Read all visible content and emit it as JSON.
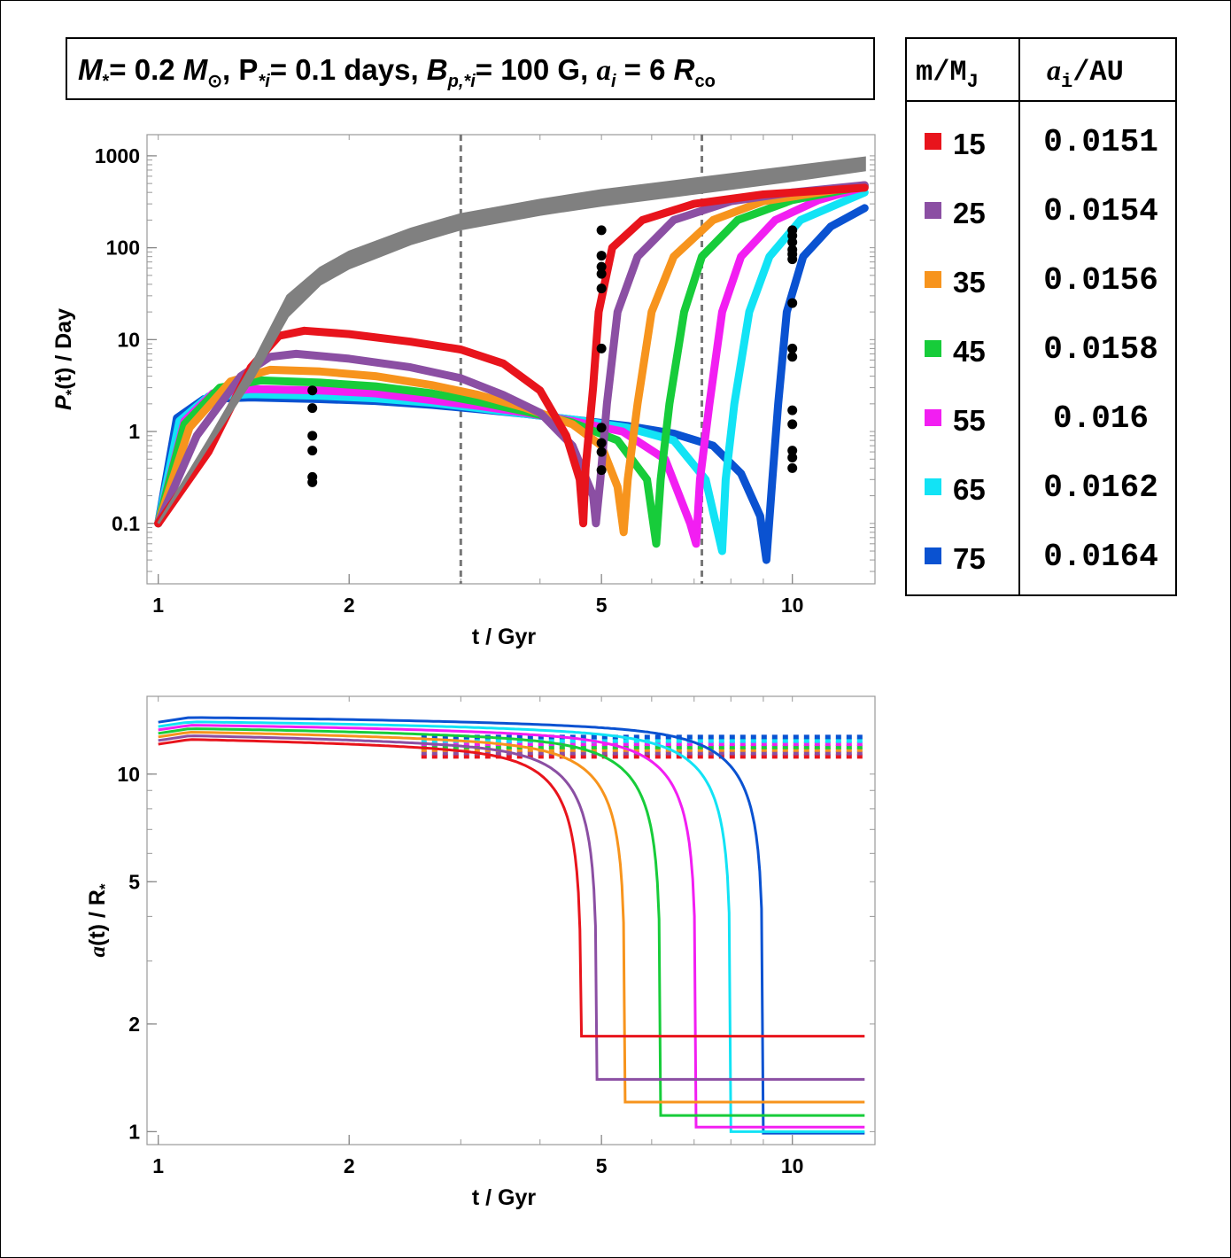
{
  "title": {
    "m_star": "M",
    "m_star_sub": "*",
    "m_star_val": "= 0.2 ",
    "m_sun": "M",
    "sun_sub": "⊙",
    "p_star": ", P",
    "p_star_sub": "*i",
    "p_star_val": "= 0.1 days, ",
    "b_p": "B",
    "b_p_sub": "p,*i",
    "b_p_val": "= 100 G,  ",
    "a_i": "a",
    "a_i_sub": "i",
    "a_i_val": " = 6 ",
    "r_co": "R",
    "r_co_sub": "co"
  },
  "legend": {
    "header_mass": "m/M",
    "header_mass_sub": "J",
    "header_ai": "a",
    "header_ai_sub": "i",
    "header_ai_unit": "/AU",
    "rows": [
      {
        "mass": "15",
        "ai": "0.0151",
        "color": "#e8141c"
      },
      {
        "mass": "25",
        "ai": "0.0154",
        "color": "#8b4fa3"
      },
      {
        "mass": "35",
        "ai": "0.0156",
        "color": "#f7941d"
      },
      {
        "mass": "45",
        "ai": "0.0158",
        "color": "#17cc3a"
      },
      {
        "mass": "55",
        "ai": "0.016",
        "color": "#f21ef2"
      },
      {
        "mass": "65",
        "ai": "0.0162",
        "color": "#12e3f5"
      },
      {
        "mass": "75",
        "ai": "0.0164",
        "color": "#0a52d1"
      }
    ]
  },
  "chart_data": [
    {
      "type": "line",
      "scale": "log-log",
      "xlabel": "t / Gyr",
      "ylabel": "P",
      "ylabel_sub": "*",
      "ylabel_rest": "(t) / Day",
      "xlim": [
        0.96,
        13.5
      ],
      "ylim": [
        0.022,
        1700
      ],
      "xticks": [
        {
          "v": 1,
          "label": "1"
        },
        {
          "v": 2,
          "label": "2"
        },
        {
          "v": 5,
          "label": "5"
        },
        {
          "v": 10,
          "label": "10"
        }
      ],
      "yticks": [
        {
          "v": 0.1,
          "label": "0.1"
        },
        {
          "v": 1,
          "label": "1"
        },
        {
          "v": 10,
          "label": "10"
        },
        {
          "v": 100,
          "label": "100"
        },
        {
          "v": 1000,
          "label": "1000"
        }
      ],
      "vlines": [
        3.0,
        7.2
      ],
      "gray_band": {
        "color": "#808080",
        "lower": [
          [
            1.0,
            0.1
          ],
          [
            1.2,
            0.7
          ],
          [
            1.4,
            3.5
          ],
          [
            1.6,
            18
          ],
          [
            1.8,
            40
          ],
          [
            2.0,
            60
          ],
          [
            2.5,
            110
          ],
          [
            3.0,
            160
          ],
          [
            4.0,
            230
          ],
          [
            5.0,
            290
          ],
          [
            7.0,
            390
          ],
          [
            10.0,
            540
          ],
          [
            13.0,
            700
          ]
        ],
        "upper": [
          [
            1.0,
            0.1
          ],
          [
            1.2,
            0.8
          ],
          [
            1.4,
            5
          ],
          [
            1.6,
            30
          ],
          [
            1.8,
            60
          ],
          [
            2.0,
            90
          ],
          [
            2.5,
            160
          ],
          [
            3.0,
            230
          ],
          [
            4.0,
            330
          ],
          [
            5.0,
            420
          ],
          [
            7.0,
            560
          ],
          [
            10.0,
            760
          ],
          [
            13.0,
            950
          ]
        ]
      },
      "series": [
        {
          "name": "15",
          "color": "#e8141c",
          "points": [
            [
              1.0,
              0.1
            ],
            [
              1.2,
              0.6
            ],
            [
              1.4,
              5
            ],
            [
              1.55,
              11
            ],
            [
              1.7,
              12.5
            ],
            [
              2.0,
              11.5
            ],
            [
              2.5,
              9.5
            ],
            [
              3.0,
              7.8
            ],
            [
              3.5,
              5.5
            ],
            [
              4.0,
              2.8
            ],
            [
              4.4,
              0.9
            ],
            [
              4.62,
              0.3
            ],
            [
              4.68,
              0.1
            ],
            [
              4.72,
              0.4
            ],
            [
              4.85,
              3
            ],
            [
              4.95,
              20
            ],
            [
              5.2,
              100
            ],
            [
              5.8,
              200
            ],
            [
              7.0,
              300
            ],
            [
              9.0,
              380
            ],
            [
              13.0,
              450
            ]
          ]
        },
        {
          "name": "25",
          "color": "#8b4fa3",
          "points": [
            [
              1.0,
              0.1
            ],
            [
              1.15,
              0.9
            ],
            [
              1.35,
              4
            ],
            [
              1.5,
              6.5
            ],
            [
              1.65,
              7
            ],
            [
              2.0,
              6.2
            ],
            [
              2.5,
              5
            ],
            [
              3.0,
              3.8
            ],
            [
              3.5,
              2.5
            ],
            [
              4.0,
              1.6
            ],
            [
              4.5,
              0.7
            ],
            [
              4.85,
              0.2
            ],
            [
              4.9,
              0.1
            ],
            [
              4.98,
              0.3
            ],
            [
              5.1,
              2
            ],
            [
              5.3,
              20
            ],
            [
              5.7,
              80
            ],
            [
              6.5,
              200
            ],
            [
              8.0,
              320
            ],
            [
              10.0,
              400
            ],
            [
              13.0,
              480
            ]
          ]
        },
        {
          "name": "35",
          "color": "#f7941d",
          "points": [
            [
              1.0,
              0.1
            ],
            [
              1.12,
              1.1
            ],
            [
              1.3,
              3.5
            ],
            [
              1.5,
              4.7
            ],
            [
              1.8,
              4.5
            ],
            [
              2.2,
              4
            ],
            [
              2.7,
              3.2
            ],
            [
              3.2,
              2.5
            ],
            [
              3.8,
              1.8
            ],
            [
              4.5,
              1.2
            ],
            [
              5.0,
              0.7
            ],
            [
              5.3,
              0.25
            ],
            [
              5.42,
              0.08
            ],
            [
              5.5,
              0.3
            ],
            [
              5.7,
              2
            ],
            [
              6.0,
              20
            ],
            [
              6.5,
              80
            ],
            [
              7.5,
              200
            ],
            [
              9.0,
              320
            ],
            [
              13.0,
              480
            ]
          ]
        },
        {
          "name": "45",
          "color": "#17cc3a",
          "points": [
            [
              1.0,
              0.1
            ],
            [
              1.1,
              1.2
            ],
            [
              1.25,
              3
            ],
            [
              1.45,
              3.6
            ],
            [
              1.8,
              3.4
            ],
            [
              2.2,
              3.1
            ],
            [
              2.7,
              2.6
            ],
            [
              3.2,
              2.1
            ],
            [
              3.8,
              1.65
            ],
            [
              4.5,
              1.25
            ],
            [
              5.3,
              0.8
            ],
            [
              5.9,
              0.3
            ],
            [
              6.1,
              0.06
            ],
            [
              6.2,
              0.3
            ],
            [
              6.4,
              2
            ],
            [
              6.75,
              20
            ],
            [
              7.2,
              80
            ],
            [
              8.2,
              200
            ],
            [
              10.0,
              330
            ],
            [
              13.0,
              470
            ]
          ]
        },
        {
          "name": "55",
          "color": "#f21ef2",
          "points": [
            [
              1.0,
              0.1
            ],
            [
              1.1,
              1.3
            ],
            [
              1.22,
              2.6
            ],
            [
              1.4,
              2.9
            ],
            [
              1.8,
              2.8
            ],
            [
              2.2,
              2.6
            ],
            [
              2.7,
              2.2
            ],
            [
              3.2,
              1.9
            ],
            [
              3.8,
              1.6
            ],
            [
              4.5,
              1.3
            ],
            [
              5.4,
              1.0
            ],
            [
              6.3,
              0.5
            ],
            [
              6.9,
              0.1
            ],
            [
              7.05,
              0.06
            ],
            [
              7.15,
              0.3
            ],
            [
              7.4,
              2
            ],
            [
              7.75,
              20
            ],
            [
              8.3,
              80
            ],
            [
              9.4,
              200
            ],
            [
              11.0,
              330
            ],
            [
              13.0,
              460
            ]
          ]
        },
        {
          "name": "65",
          "color": "#12e3f5",
          "points": [
            [
              1.0,
              0.1
            ],
            [
              1.08,
              1.3
            ],
            [
              1.2,
              2.4
            ],
            [
              1.4,
              2.55
            ],
            [
              1.8,
              2.45
            ],
            [
              2.2,
              2.3
            ],
            [
              2.7,
              2.05
            ],
            [
              3.2,
              1.8
            ],
            [
              3.8,
              1.55
            ],
            [
              4.5,
              1.35
            ],
            [
              5.5,
              1.1
            ],
            [
              6.5,
              0.8
            ],
            [
              7.3,
              0.3
            ],
            [
              7.75,
              0.05
            ],
            [
              7.85,
              0.3
            ],
            [
              8.1,
              2
            ],
            [
              8.55,
              20
            ],
            [
              9.2,
              80
            ],
            [
              10.3,
              200
            ],
            [
              13.0,
              400
            ]
          ]
        },
        {
          "name": "75",
          "color": "#0a52d1",
          "points": [
            [
              1.0,
              0.1
            ],
            [
              1.07,
              1.4
            ],
            [
              1.18,
              2.25
            ],
            [
              1.4,
              2.35
            ],
            [
              1.8,
              2.25
            ],
            [
              2.2,
              2.15
            ],
            [
              2.7,
              1.95
            ],
            [
              3.2,
              1.75
            ],
            [
              3.8,
              1.55
            ],
            [
              4.5,
              1.35
            ],
            [
              5.5,
              1.15
            ],
            [
              6.5,
              0.95
            ],
            [
              7.5,
              0.7
            ],
            [
              8.3,
              0.35
            ],
            [
              8.9,
              0.12
            ],
            [
              9.1,
              0.04
            ],
            [
              9.3,
              0.3
            ],
            [
              9.5,
              2
            ],
            [
              9.8,
              20
            ],
            [
              10.4,
              80
            ],
            [
              11.5,
              170
            ],
            [
              13.0,
              270
            ]
          ]
        }
      ],
      "dots": [
        {
          "t": 1.75,
          "p": [
            2.8,
            1.8,
            0.9,
            0.62,
            0.32,
            0.28
          ]
        },
        {
          "t": 5.0,
          "p": [
            155,
            82,
            62,
            52,
            36,
            8,
            1.1,
            0.75,
            0.6,
            0.38
          ]
        },
        {
          "t": 10.0,
          "p": [
            155,
            135,
            115,
            95,
            85,
            75,
            25,
            8,
            6.5,
            1.7,
            1.2,
            0.62,
            0.52,
            0.4
          ]
        }
      ]
    },
    {
      "type": "line",
      "scale": "log-log",
      "xlabel": "t / Gyr",
      "ylabel": "a",
      "ylabel_rest": "(t) / R",
      "ylabel_sub": "*",
      "xlim": [
        0.96,
        13.5
      ],
      "ylim": [
        0.92,
        16.5
      ],
      "xticks": [
        {
          "v": 1,
          "label": "1"
        },
        {
          "v": 2,
          "label": "2"
        },
        {
          "v": 5,
          "label": "5"
        },
        {
          "v": 10,
          "label": "10"
        }
      ],
      "yticks": [
        {
          "v": 1,
          "label": "1"
        },
        {
          "v": 2,
          "label": "2"
        },
        {
          "v": 5,
          "label": "5"
        },
        {
          "v": 10,
          "label": "10"
        }
      ],
      "series": [
        {
          "name": "15",
          "color": "#e8141c",
          "start": 12.5,
          "dash": 11.2,
          "t_end": 4.65,
          "floor": 1.85
        },
        {
          "name": "25",
          "color": "#8b4fa3",
          "start": 12.8,
          "dash": 11.45,
          "t_end": 4.92,
          "floor": 1.4
        },
        {
          "name": "35",
          "color": "#f7941d",
          "start": 13.1,
          "dash": 11.7,
          "t_end": 5.45,
          "floor": 1.21
        },
        {
          "name": "45",
          "color": "#17cc3a",
          "start": 13.4,
          "dash": 11.9,
          "t_end": 6.2,
          "floor": 1.11
        },
        {
          "name": "55",
          "color": "#f21ef2",
          "start": 13.7,
          "dash": 12.15,
          "t_end": 7.05,
          "floor": 1.03
        },
        {
          "name": "65",
          "color": "#12e3f5",
          "start": 14.0,
          "dash": 12.4,
          "t_end": 8.0,
          "floor": 1.0
        },
        {
          "name": "75",
          "color": "#0a52d1",
          "start": 14.4,
          "dash": 12.7,
          "t_end": 9.0,
          "floor": 0.99
        }
      ]
    }
  ]
}
